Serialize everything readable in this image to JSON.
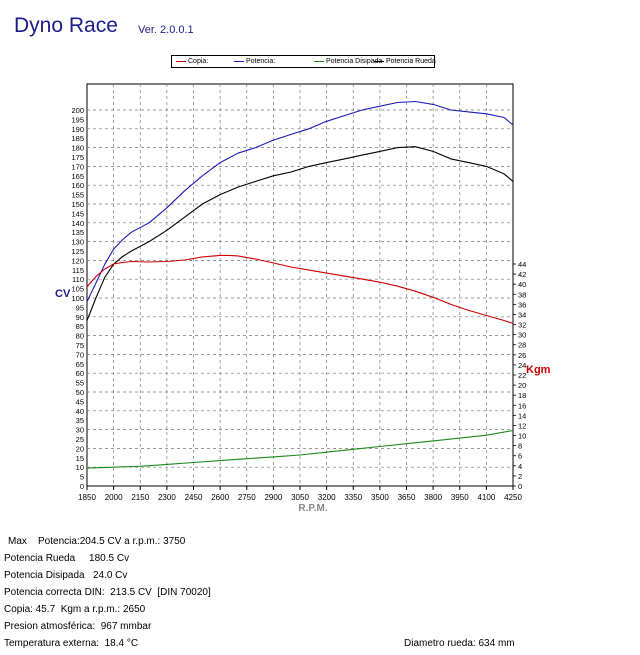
{
  "header": {
    "title": "Dyno Race",
    "version": "Ver. 2.0.0.1"
  },
  "legend": [
    {
      "label": "Copia:",
      "color": "#cc0000"
    },
    {
      "label": "Potencia:",
      "color": "#1a1ab8"
    },
    {
      "label": "Potencia Disipada",
      "color": "#1a8a1a"
    },
    {
      "label": "Potencia Rueda",
      "color": "#000000"
    }
  ],
  "stats": {
    "max": "Max    Potencia:204.5 CV a r.p.m.: 3750",
    "rueda": "Potencia Rueda     180.5 Cv",
    "disipada": "Potencia Disipada   24.0 Cv",
    "correcta": "Potencia correcta DIN:  213.5 CV  [DIN 70020]",
    "copia": "Copia: 45.7  Kgm a r.p.m.: 2650",
    "presion": "Presion atmosférica:  967 mmbar",
    "temperatura": "Temperatura externa:  18.4 °C",
    "diametro": "Diametro rueda: 634 mm"
  },
  "chart_data": {
    "type": "line",
    "xlabel": "R.P.M.",
    "ylabel_left": "CV",
    "ylabel_right": "Kgm",
    "xlim": [
      1850,
      4250
    ],
    "ylim_left": [
      0,
      205
    ],
    "ylim_right": [
      0,
      45
    ],
    "x_ticks": [
      1850,
      2000,
      2150,
      2300,
      2450,
      2600,
      2750,
      2900,
      3050,
      3200,
      3350,
      3500,
      3650,
      3800,
      3950,
      4100,
      4250
    ],
    "y_left_ticks": [
      0,
      5,
      10,
      15,
      20,
      25,
      30,
      35,
      40,
      45,
      50,
      55,
      60,
      65,
      70,
      75,
      80,
      85,
      90,
      95,
      100,
      105,
      110,
      115,
      120,
      125,
      130,
      135,
      140,
      145,
      150,
      155,
      160,
      165,
      170,
      175,
      180,
      185,
      190,
      195,
      200
    ],
    "y_right_ticks": [
      0,
      2,
      4,
      6,
      8,
      10,
      12,
      14,
      16,
      18,
      20,
      22,
      24,
      26,
      28,
      30,
      32,
      34,
      36,
      38,
      40,
      42,
      44
    ],
    "grid": true,
    "series": [
      {
        "name": "Potencia",
        "axis": "left",
        "color": "#1a1ab8",
        "x": [
          1850,
          1900,
          1950,
          2000,
          2050,
          2100,
          2200,
          2300,
          2400,
          2500,
          2600,
          2700,
          2800,
          2900,
          3000,
          3100,
          3200,
          3300,
          3400,
          3500,
          3600,
          3700,
          3800,
          3900,
          4000,
          4100,
          4200,
          4250
        ],
        "y": [
          98,
          108,
          118,
          126,
          131,
          135,
          140,
          148,
          157,
          165,
          172,
          177,
          180,
          184,
          187,
          190,
          194,
          197,
          200,
          202,
          204,
          204.5,
          203,
          200,
          199,
          198,
          196,
          192
        ]
      },
      {
        "name": "Potencia Rueda",
        "axis": "left",
        "color": "#000000",
        "x": [
          1850,
          1900,
          1950,
          2000,
          2050,
          2100,
          2200,
          2300,
          2400,
          2500,
          2600,
          2700,
          2800,
          2900,
          3000,
          3100,
          3200,
          3300,
          3400,
          3500,
          3600,
          3700,
          3800,
          3900,
          4000,
          4100,
          4200,
          4250
        ],
        "y": [
          88,
          100,
          111,
          118,
          122,
          125,
          130,
          136,
          143,
          150,
          155,
          159,
          162,
          165,
          167,
          170,
          172,
          174,
          176,
          178,
          180,
          180.5,
          178,
          174,
          172,
          170,
          166,
          162
        ]
      },
      {
        "name": "Potencia Disipada",
        "axis": "left",
        "color": "#1a8a1a",
        "x": [
          1850,
          2000,
          2150,
          2300,
          2450,
          2600,
          2750,
          2900,
          3050,
          3200,
          3350,
          3500,
          3650,
          3800,
          3950,
          4100,
          4250
        ],
        "y": [
          9.5,
          10,
          10.5,
          11.5,
          12.5,
          13.5,
          14.5,
          15.5,
          16.5,
          18,
          19.5,
          21,
          22.5,
          24,
          25.5,
          27,
          29.5
        ]
      },
      {
        "name": "Copia",
        "axis": "right",
        "color": "#cc0000",
        "x": [
          1850,
          1900,
          1950,
          2000,
          2050,
          2100,
          2200,
          2300,
          2400,
          2500,
          2600,
          2650,
          2700,
          2800,
          2900,
          3000,
          3100,
          3200,
          3300,
          3400,
          3500,
          3600,
          3700,
          3800,
          3900,
          4000,
          4100,
          4200,
          4250
        ],
        "y": [
          39.5,
          41.5,
          43,
          44,
          44.3,
          44.5,
          44.4,
          44.5,
          44.8,
          45.4,
          45.7,
          45.7,
          45.6,
          45,
          44.2,
          43.4,
          42.8,
          42.2,
          41.6,
          41,
          40.4,
          39.6,
          38.6,
          37.4,
          36,
          34.8,
          33.8,
          32.8,
          32.2
        ]
      }
    ]
  }
}
